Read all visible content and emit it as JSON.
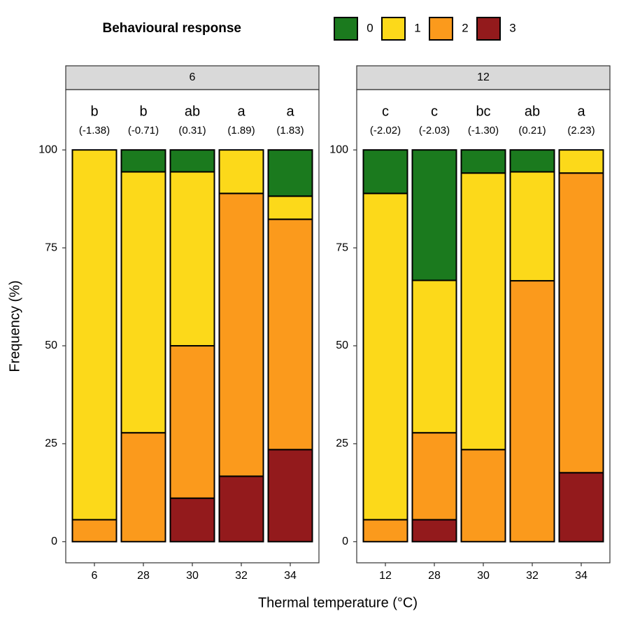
{
  "chart_data": {
    "type": "stacked_bar",
    "legend_title": "Behavioural response",
    "x_label": "Thermal temperature (°C)",
    "y_label": "Frequency (%)",
    "legend": [
      {
        "name": "0",
        "color": "#1b7a1e"
      },
      {
        "name": "1",
        "color": "#fcd91a"
      },
      {
        "name": "2",
        "color": "#fb9a1c"
      },
      {
        "name": "3",
        "color": "#931a1c"
      }
    ],
    "ylim": [
      -5.4,
      115.4
    ],
    "yticks": [
      0,
      25,
      50,
      75,
      100
    ],
    "facets": [
      {
        "title": "6",
        "categories": [
          "6",
          "28",
          "30",
          "32",
          "34"
        ],
        "letters": [
          "b",
          "b",
          "ab",
          "a",
          "a"
        ],
        "scores": [
          "(-1.38)",
          "(-0.71)",
          "(0.31)",
          "(1.89)",
          "(1.83)"
        ],
        "series": [
          {
            "values": [
              0,
              5.6,
              5.6,
              0,
              11.8
            ]
          },
          {
            "values": [
              94.4,
              66.6,
              44.4,
              11.1,
              5.9
            ]
          },
          {
            "values": [
              5.6,
              27.8,
              38.9,
              72.2,
              58.8
            ]
          },
          {
            "values": [
              0,
              0,
              11.1,
              16.7,
              23.5
            ]
          }
        ]
      },
      {
        "title": "12",
        "categories": [
          "12",
          "28",
          "30",
          "32",
          "34"
        ],
        "letters": [
          "c",
          "c",
          "bc",
          "ab",
          "a"
        ],
        "scores": [
          "(-2.02)",
          "(-2.03)",
          "(-1.30)",
          "(0.21)",
          "(2.23)"
        ],
        "series": [
          {
            "values": [
              11.1,
              33.3,
              5.9,
              5.6,
              0
            ]
          },
          {
            "values": [
              83.3,
              38.9,
              70.6,
              27.8,
              5.9
            ]
          },
          {
            "values": [
              5.6,
              22.2,
              23.5,
              66.6,
              76.5
            ]
          },
          {
            "values": [
              0,
              5.6,
              0,
              0,
              17.6
            ]
          }
        ]
      }
    ]
  }
}
